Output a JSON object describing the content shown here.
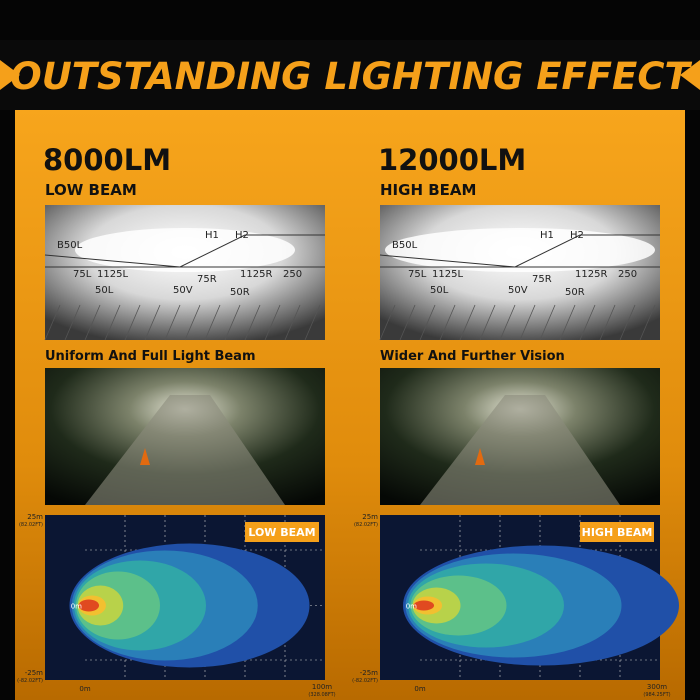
{
  "header": {
    "title": "OUTSTANDING LIGHTING EFFECT"
  },
  "panels": [
    {
      "lumen": "8000LM",
      "beam": "LOW BEAM",
      "pattern_labels": [
        "B50L",
        "H1",
        "H2",
        "75L",
        "1125L",
        "50L",
        "50V",
        "75R",
        "1125R",
        "50R",
        "250"
      ],
      "caption": "Uniform And Full Light Beam",
      "diagram": {
        "badge": "LOW BEAM",
        "top": "25m",
        "top_ft": "(82.02FT)",
        "mid": "0m",
        "bottom": "-25m",
        "bottom_ft": "(-82.02FT)",
        "x_start": "0m",
        "x_end": "100m",
        "x_end_ft": "(328.08FT)"
      }
    },
    {
      "lumen": "12000LM",
      "beam": "HIGH BEAM",
      "pattern_labels": [
        "B50L",
        "H1",
        "H2",
        "75L",
        "1125L",
        "50L",
        "50V",
        "75R",
        "1125R",
        "50R",
        "250"
      ],
      "caption": "Wider And Further Vision",
      "diagram": {
        "badge": "HIGH BEAM",
        "top": "25m",
        "top_ft": "(82.02FT)",
        "mid": "0m",
        "bottom": "-25m",
        "bottom_ft": "(-82.02FT)",
        "x_start": "0m",
        "x_end": "300m",
        "x_end_ft": "(984.25FT)"
      }
    }
  ]
}
